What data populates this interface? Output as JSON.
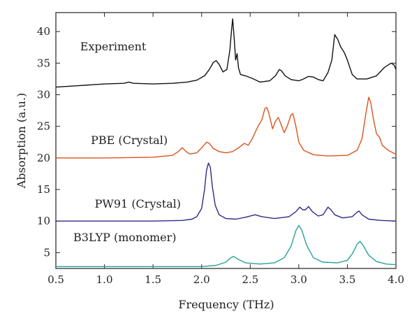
{
  "chart_data": {
    "type": "line",
    "title": "",
    "xlabel": "Frequency (THz)",
    "ylabel": "Absorption (a.u.)",
    "xlim": [
      0.5,
      4.0
    ],
    "ylim": [
      2.5,
      43
    ],
    "xticks": [
      0.5,
      1.0,
      1.5,
      2.0,
      2.5,
      3.0,
      3.5,
      4.0
    ],
    "xtick_labels": [
      "0.5",
      "1.0",
      "1.5",
      "2.0",
      "2.5",
      "3.0",
      "3.5",
      "4.0"
    ],
    "yticks": [
      5,
      10,
      15,
      20,
      25,
      30,
      35,
      40
    ],
    "ytick_labels": [
      "5",
      "10",
      "15",
      "20",
      "25",
      "30",
      "35",
      "40"
    ],
    "grid": false,
    "legend": "none",
    "series": [
      {
        "name": "Experiment",
        "color": "#111111",
        "label_at": [
          0.75,
          37
        ],
        "points": [
          [
            0.5,
            31.2
          ],
          [
            0.7,
            31.4
          ],
          [
            1.0,
            31.7
          ],
          [
            1.2,
            31.8
          ],
          [
            1.25,
            32.0
          ],
          [
            1.3,
            31.8
          ],
          [
            1.5,
            31.7
          ],
          [
            1.7,
            31.8
          ],
          [
            1.85,
            32.0
          ],
          [
            1.95,
            32.3
          ],
          [
            2.03,
            33.0
          ],
          [
            2.08,
            34.0
          ],
          [
            2.12,
            35.1
          ],
          [
            2.15,
            35.4
          ],
          [
            2.18,
            34.8
          ],
          [
            2.22,
            33.6
          ],
          [
            2.26,
            34.0
          ],
          [
            2.29,
            37.0
          ],
          [
            2.31,
            40.5
          ],
          [
            2.32,
            42.0
          ],
          [
            2.335,
            39.0
          ],
          [
            2.35,
            35.5
          ],
          [
            2.365,
            36.5
          ],
          [
            2.38,
            34.2
          ],
          [
            2.4,
            33.2
          ],
          [
            2.45,
            33.0
          ],
          [
            2.52,
            32.6
          ],
          [
            2.6,
            32.0
          ],
          [
            2.7,
            32.2
          ],
          [
            2.76,
            33.0
          ],
          [
            2.8,
            34.0
          ],
          [
            2.82,
            33.8
          ],
          [
            2.86,
            33.0
          ],
          [
            2.92,
            32.4
          ],
          [
            3.0,
            32.2
          ],
          [
            3.05,
            32.5
          ],
          [
            3.1,
            32.9
          ],
          [
            3.15,
            32.8
          ],
          [
            3.2,
            32.4
          ],
          [
            3.25,
            32.2
          ],
          [
            3.3,
            33.5
          ],
          [
            3.34,
            35.5
          ],
          [
            3.37,
            39.5
          ],
          [
            3.4,
            38.8
          ],
          [
            3.43,
            37.6
          ],
          [
            3.47,
            36.6
          ],
          [
            3.5,
            35.5
          ],
          [
            3.55,
            33.2
          ],
          [
            3.6,
            32.5
          ],
          [
            3.7,
            32.5
          ],
          [
            3.8,
            33.0
          ],
          [
            3.88,
            34.3
          ],
          [
            3.95,
            35.0
          ],
          [
            3.98,
            34.7
          ],
          [
            4.0,
            34.0
          ]
        ]
      },
      {
        "name": "PBE (Crystal)",
        "color": "#d9541e",
        "label_at": [
          0.86,
          22.2
        ],
        "points": [
          [
            0.5,
            20.0
          ],
          [
            1.0,
            20.0
          ],
          [
            1.5,
            20.1
          ],
          [
            1.7,
            20.4
          ],
          [
            1.76,
            21.0
          ],
          [
            1.8,
            21.6
          ],
          [
            1.84,
            21.0
          ],
          [
            1.88,
            20.6
          ],
          [
            1.95,
            20.8
          ],
          [
            2.0,
            21.6
          ],
          [
            2.05,
            22.5
          ],
          [
            2.08,
            22.3
          ],
          [
            2.12,
            21.5
          ],
          [
            2.18,
            21.0
          ],
          [
            2.25,
            20.8
          ],
          [
            2.32,
            21.0
          ],
          [
            2.38,
            21.6
          ],
          [
            2.44,
            22.3
          ],
          [
            2.48,
            22.0
          ],
          [
            2.52,
            23.0
          ],
          [
            2.58,
            25.0
          ],
          [
            2.62,
            26.0
          ],
          [
            2.65,
            27.8
          ],
          [
            2.67,
            28.0
          ],
          [
            2.69,
            27.2
          ],
          [
            2.73,
            24.6
          ],
          [
            2.76,
            25.8
          ],
          [
            2.79,
            26.4
          ],
          [
            2.82,
            25.2
          ],
          [
            2.85,
            24.0
          ],
          [
            2.88,
            25.0
          ],
          [
            2.92,
            26.8
          ],
          [
            2.94,
            27.0
          ],
          [
            2.97,
            25.0
          ],
          [
            3.0,
            22.5
          ],
          [
            3.05,
            21.2
          ],
          [
            3.15,
            20.5
          ],
          [
            3.3,
            20.3
          ],
          [
            3.5,
            20.4
          ],
          [
            3.6,
            21.2
          ],
          [
            3.65,
            23.0
          ],
          [
            3.69,
            27.0
          ],
          [
            3.72,
            29.6
          ],
          [
            3.74,
            28.8
          ],
          [
            3.77,
            26.0
          ],
          [
            3.8,
            23.8
          ],
          [
            3.83,
            23.3
          ],
          [
            3.86,
            22.0
          ],
          [
            3.92,
            21.2
          ],
          [
            3.97,
            20.8
          ],
          [
            4.0,
            20.6
          ]
        ]
      },
      {
        "name": "PW91 (Crystal)",
        "color": "#2e2a88",
        "label_at": [
          0.9,
          12.1
        ],
        "points": [
          [
            0.5,
            10.0
          ],
          [
            1.0,
            10.0
          ],
          [
            1.5,
            10.0
          ],
          [
            1.8,
            10.1
          ],
          [
            1.9,
            10.3
          ],
          [
            1.95,
            10.7
          ],
          [
            2.0,
            12.0
          ],
          [
            2.03,
            15.0
          ],
          [
            2.05,
            18.0
          ],
          [
            2.07,
            19.2
          ],
          [
            2.09,
            18.5
          ],
          [
            2.11,
            15.5
          ],
          [
            2.14,
            12.5
          ],
          [
            2.18,
            11.0
          ],
          [
            2.25,
            10.4
          ],
          [
            2.35,
            10.3
          ],
          [
            2.45,
            10.6
          ],
          [
            2.55,
            11.0
          ],
          [
            2.62,
            10.7
          ],
          [
            2.75,
            10.4
          ],
          [
            2.9,
            10.7
          ],
          [
            2.97,
            11.5
          ],
          [
            3.01,
            12.2
          ],
          [
            3.04,
            11.8
          ],
          [
            3.07,
            11.8
          ],
          [
            3.1,
            12.3
          ],
          [
            3.14,
            11.5
          ],
          [
            3.2,
            10.8
          ],
          [
            3.25,
            11.0
          ],
          [
            3.3,
            12.2
          ],
          [
            3.33,
            11.8
          ],
          [
            3.37,
            11.0
          ],
          [
            3.45,
            10.5
          ],
          [
            3.55,
            10.7
          ],
          [
            3.6,
            11.4
          ],
          [
            3.62,
            11.6
          ],
          [
            3.65,
            11.0
          ],
          [
            3.72,
            10.3
          ],
          [
            3.85,
            10.1
          ],
          [
            4.0,
            10.0
          ]
        ]
      },
      {
        "name": "B3LYP (monomer)",
        "color": "#2aa198",
        "label_at": [
          0.68,
          6.8
        ],
        "points": [
          [
            0.5,
            2.8
          ],
          [
            1.0,
            2.8
          ],
          [
            1.5,
            2.8
          ],
          [
            2.0,
            2.8
          ],
          [
            2.15,
            3.0
          ],
          [
            2.25,
            3.5
          ],
          [
            2.3,
            4.2
          ],
          [
            2.33,
            4.4
          ],
          [
            2.37,
            4.0
          ],
          [
            2.45,
            3.4
          ],
          [
            2.6,
            3.2
          ],
          [
            2.75,
            3.4
          ],
          [
            2.85,
            4.2
          ],
          [
            2.92,
            6.0
          ],
          [
            2.97,
            8.5
          ],
          [
            3.0,
            9.3
          ],
          [
            3.03,
            8.6
          ],
          [
            3.08,
            6.2
          ],
          [
            3.15,
            4.2
          ],
          [
            3.25,
            3.5
          ],
          [
            3.4,
            3.4
          ],
          [
            3.5,
            3.8
          ],
          [
            3.55,
            4.8
          ],
          [
            3.6,
            6.3
          ],
          [
            3.63,
            6.8
          ],
          [
            3.66,
            6.2
          ],
          [
            3.72,
            4.6
          ],
          [
            3.8,
            3.6
          ],
          [
            3.9,
            3.2
          ],
          [
            4.0,
            3.1
          ]
        ]
      }
    ]
  }
}
